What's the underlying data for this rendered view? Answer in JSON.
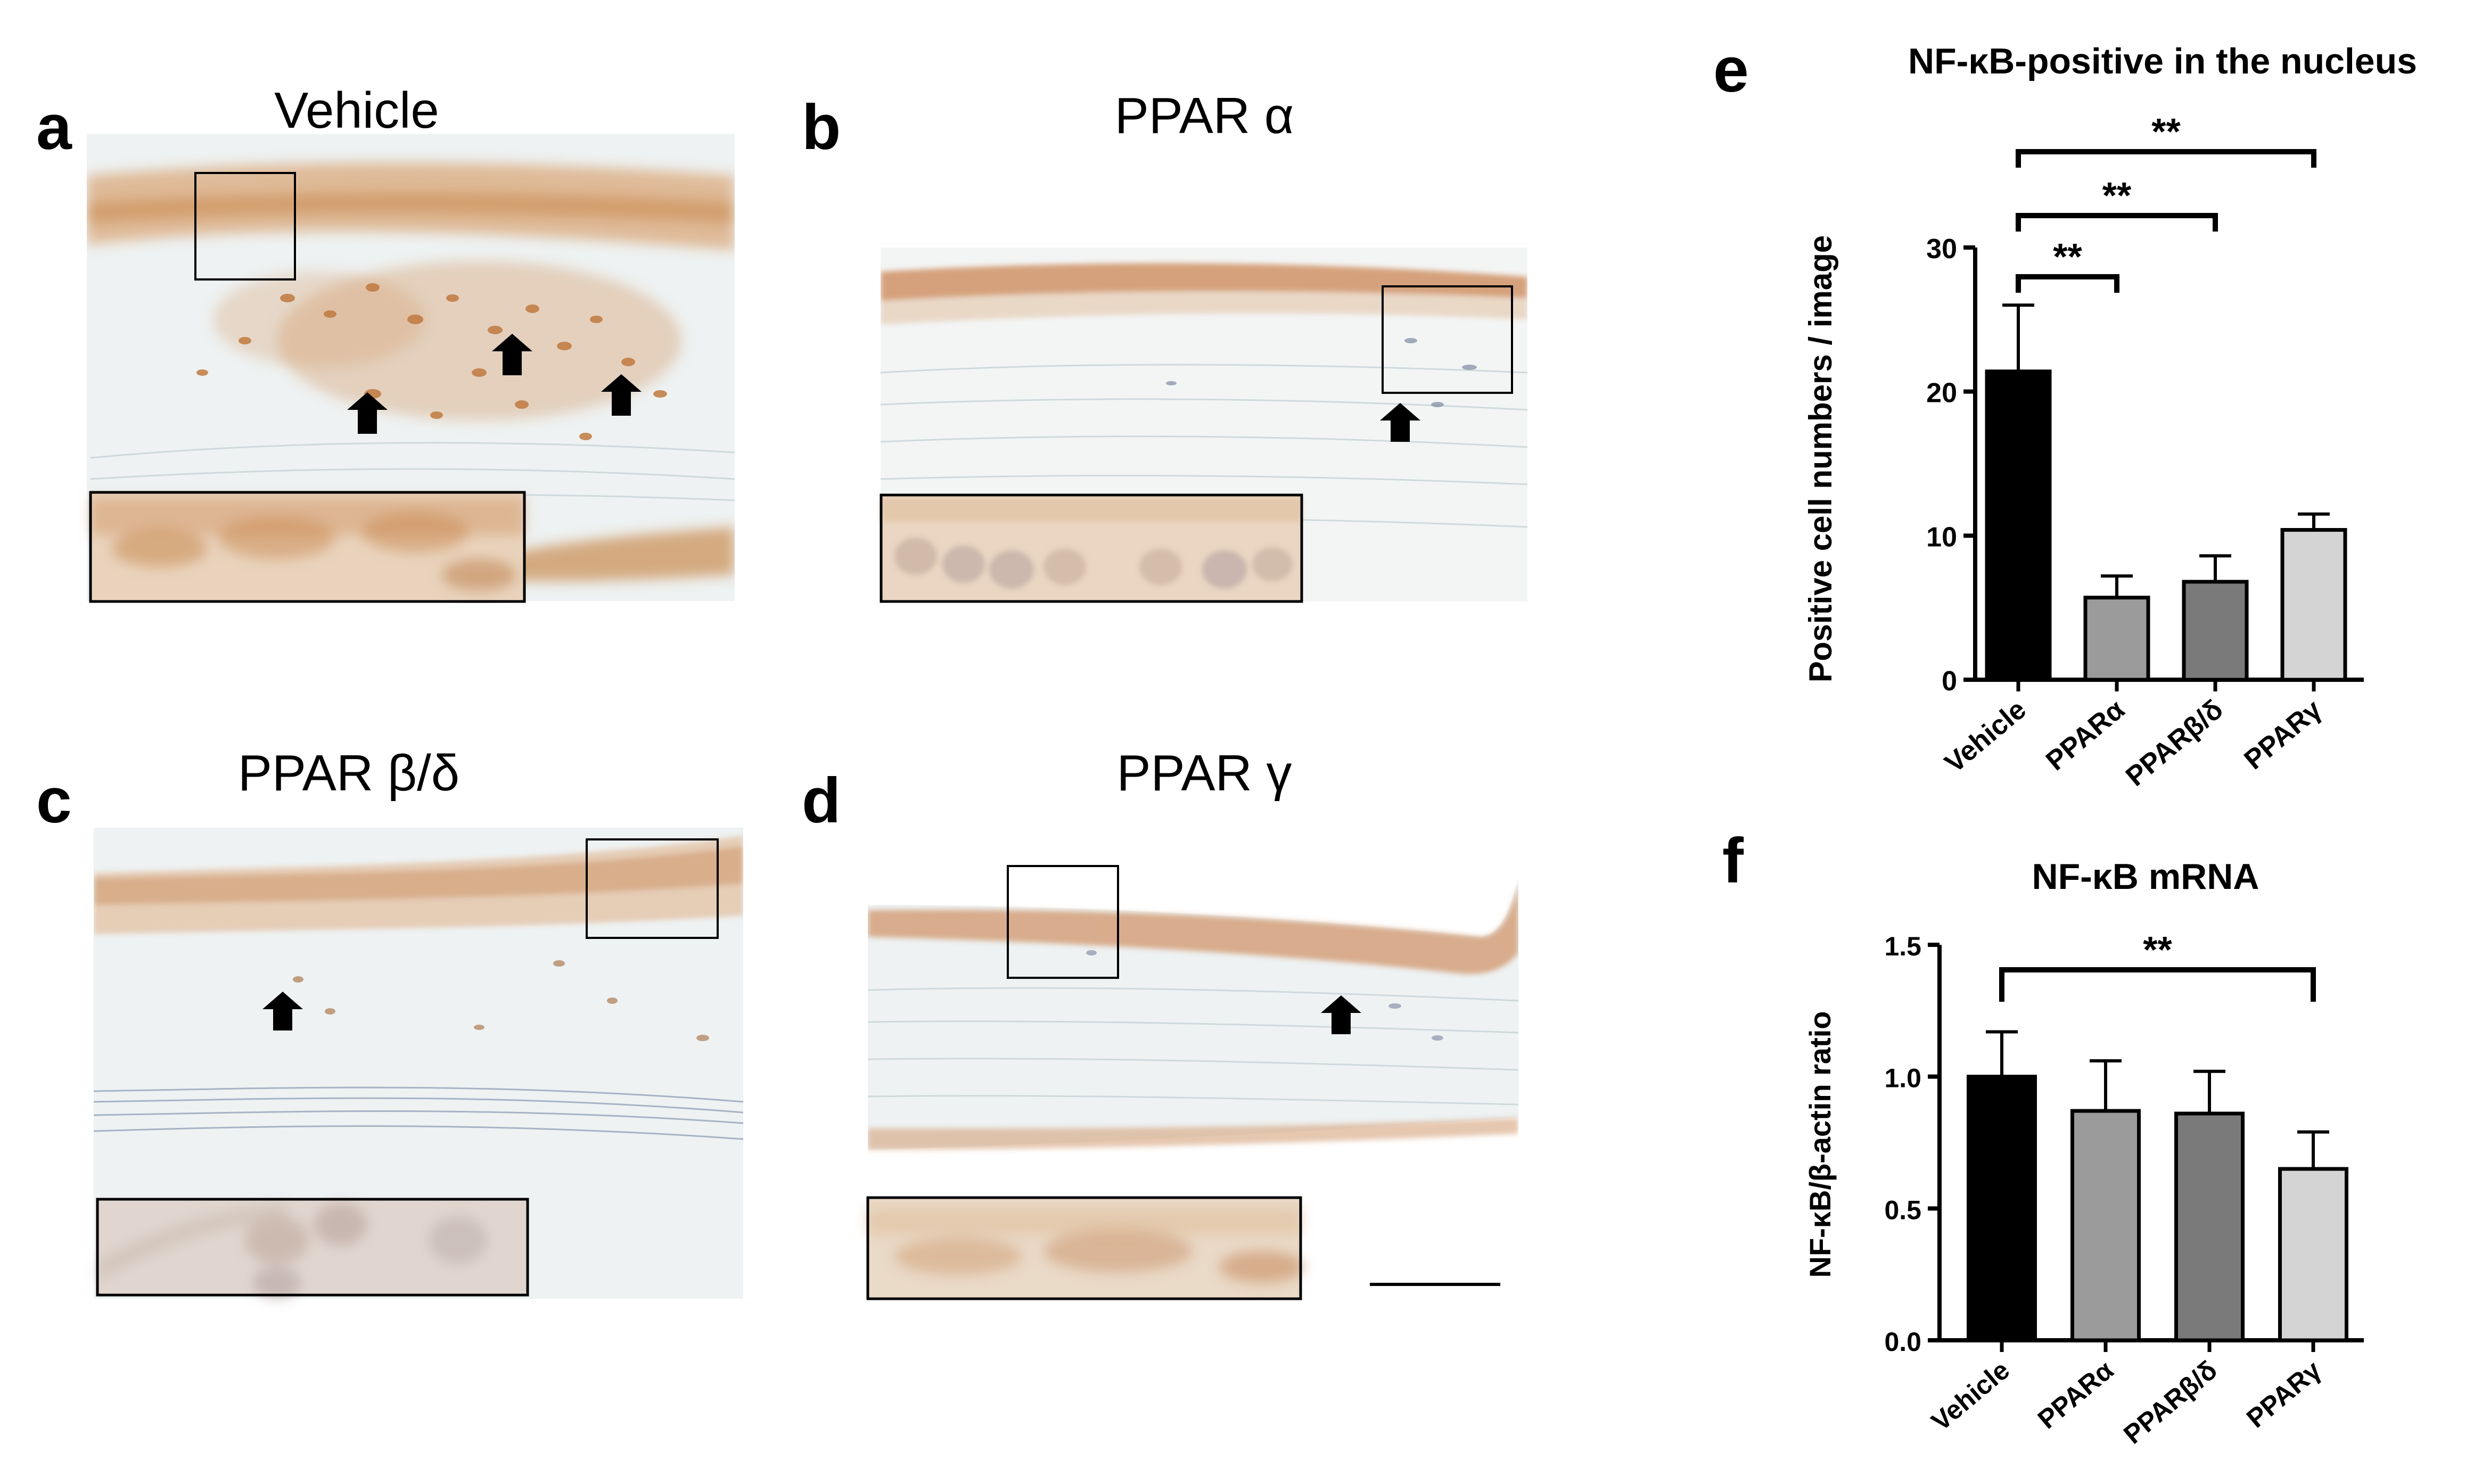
{
  "panels": [
    {
      "letter": "a",
      "title": "Vehicle",
      "arrows": 3
    },
    {
      "letter": "b",
      "title": "PPAR α",
      "arrows": 1
    },
    {
      "letter": "c",
      "title": "PPAR β/δ",
      "arrows": 1
    },
    {
      "letter": "d",
      "title": "PPAR γ",
      "arrows": 1
    }
  ],
  "colors": {
    "stain_brown": "#c98a4f",
    "stroma": "#eef2f2",
    "bar_vehicle": "#000000",
    "bar_ppara": "#9b9b9b",
    "bar_pparbd": "#7a7a7a",
    "bar_pparg": "#d4d4d4"
  },
  "chart_data": [
    {
      "letter": "e",
      "type": "bar",
      "title": "NF-κB-positive in the nucleus",
      "xlabel": "",
      "ylabel": "Positive cell numbers / image",
      "categories": [
        "Vehicle",
        "PPARα",
        "PPARβ/δ",
        "PPARγ"
      ],
      "values": [
        21.4,
        5.7,
        6.8,
        10.4
      ],
      "errors": [
        4.6,
        1.5,
        1.8,
        1.1
      ],
      "ylim": [
        0,
        30
      ],
      "yticks": [
        "0",
        "10",
        "20",
        "30"
      ],
      "significance": [
        {
          "from": 0,
          "to": 1,
          "label": "**"
        },
        {
          "from": 0,
          "to": 2,
          "label": "**"
        },
        {
          "from": 0,
          "to": 3,
          "label": "**"
        }
      ]
    },
    {
      "letter": "f",
      "type": "bar",
      "title": "NF-κB mRNA",
      "xlabel": "",
      "ylabel": "NF-κB/β-actin ratio",
      "categories": [
        "Vehicle",
        "PPARα",
        "PPARβ/δ",
        "PPARγ"
      ],
      "values": [
        1.0,
        0.87,
        0.86,
        0.65
      ],
      "errors": [
        0.17,
        0.19,
        0.16,
        0.14
      ],
      "ylim": [
        0,
        1.5
      ],
      "yticks": [
        "0.0",
        "0.5",
        "1.0",
        "1.5"
      ],
      "significance": [
        {
          "from": 0,
          "to": 3,
          "label": "**"
        }
      ]
    }
  ]
}
